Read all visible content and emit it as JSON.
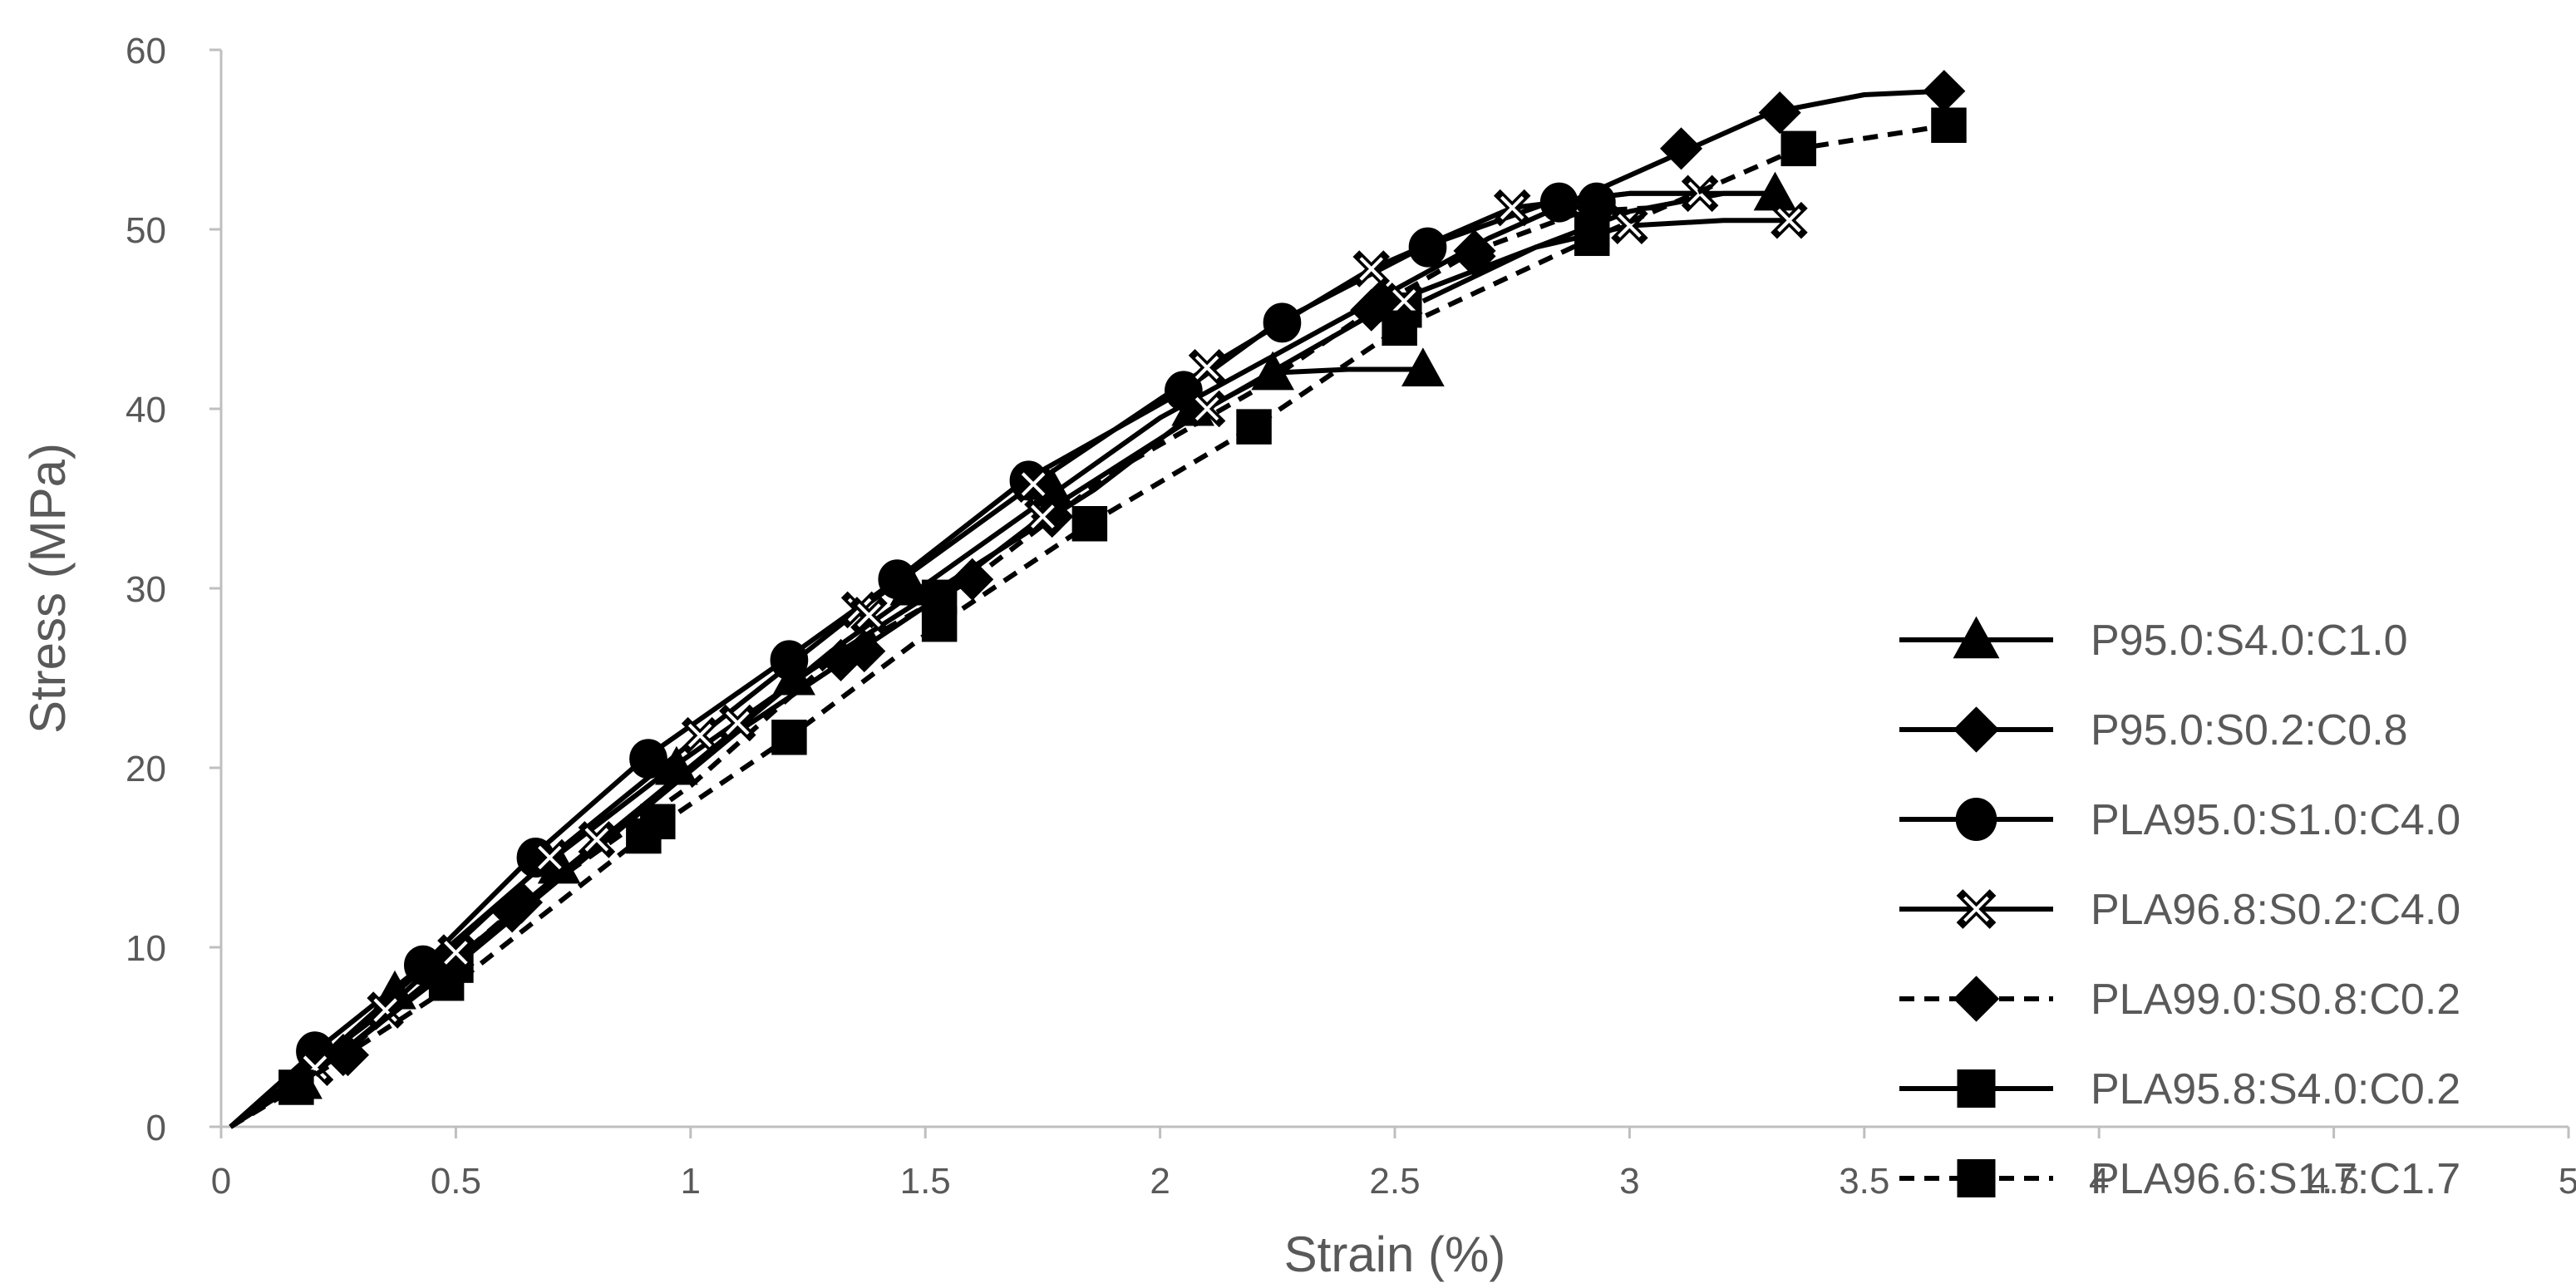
{
  "chart_data": {
    "type": "line",
    "title": "",
    "xlabel": "Strain (%)",
    "ylabel": "Stress (MPa)",
    "xlim": [
      0,
      5
    ],
    "ylim": [
      0,
      60
    ],
    "x_ticks": [
      "0",
      "0.5",
      "1",
      "1.5",
      "2",
      "2.5",
      "3",
      "3.5",
      "4",
      "4.5",
      "5"
    ],
    "y_ticks": [
      "0",
      "10",
      "20",
      "30",
      "40",
      "50",
      "60"
    ],
    "grid": false,
    "legend_position": "bottom-right",
    "series": [
      {
        "name": "P95.0:S4.0:C1.0",
        "marker": "triangle",
        "marker_fill": "#000000",
        "line_style": "solid",
        "x": [
          0.02,
          0.16,
          0.36,
          0.66,
          0.96,
          1.26,
          1.56,
          1.86,
          2.06,
          2.24,
          2.4,
          2.56
        ],
        "y": [
          0,
          2.5,
          7.2,
          14.0,
          20.0,
          25.5,
          30.5,
          35.5,
          39.5,
          42.0,
          42.2,
          42.2
        ],
        "marker_x": [
          0.17,
          0.37,
          0.72,
          0.97,
          1.22,
          1.47,
          1.77,
          2.07,
          2.24,
          2.56
        ],
        "marker_y": [
          2.5,
          7.5,
          14.5,
          20.0,
          25.0,
          30.0,
          35.5,
          40.0,
          42.0,
          42.2
        ],
        "tail_x": [
          2.56,
          2.8,
          3.0,
          3.2,
          3.31
        ],
        "tail_y": [
          46.0,
          49.0,
          51.0,
          52.0,
          52.0
        ]
      },
      {
        "name": "P95.0:S0.2:C0.8",
        "marker": "diamond",
        "marker_fill": "#000000",
        "line_style": "solid",
        "x": [
          0.02,
          0.25,
          0.6,
          0.95,
          1.3,
          1.65,
          2.0,
          2.35,
          2.7,
          3.0,
          3.3,
          3.5,
          3.67
        ],
        "y": [
          0,
          4.0,
          11.5,
          19.0,
          26.5,
          33.0,
          39.5,
          44.5,
          49.5,
          53.0,
          56.5,
          57.5,
          57.7
        ],
        "marker_x": [
          0.27,
          0.62,
          1.37,
          1.77,
          2.47,
          2.67,
          3.11,
          3.32,
          3.67
        ],
        "marker_y": [
          4.0,
          12.0,
          26.5,
          34.0,
          46.0,
          48.5,
          54.5,
          56.5,
          57.7
        ]
      },
      {
        "name": "PLA95.0:S1.0:C4.0",
        "marker": "circle",
        "marker_fill": "#000000",
        "line_style": "solid",
        "x": [
          0.02,
          0.2,
          0.43,
          0.66,
          0.9,
          1.2,
          1.44,
          1.71,
          2.05,
          2.25,
          2.56,
          2.83,
          3.0,
          3.3
        ],
        "y": [
          0,
          4.2,
          9.0,
          15.0,
          20.5,
          26.0,
          30.5,
          36.0,
          41.0,
          44.8,
          49.0,
          51.5,
          52.0,
          52.0
        ],
        "marker_x": [
          0.2,
          0.43,
          0.67,
          0.91,
          1.21,
          1.44,
          1.72,
          2.05,
          2.26,
          2.57,
          2.85,
          2.93
        ],
        "marker_y": [
          4.2,
          9.0,
          15.0,
          20.5,
          26.0,
          30.5,
          36.0,
          41.0,
          44.8,
          49.0,
          51.5,
          51.5
        ]
      },
      {
        "name": "PLA96.8:S0.2:C4.0",
        "marker": "x",
        "marker_fill": "#000000",
        "line_style": "solid",
        "x": [
          0.02,
          0.35,
          0.7,
          1.02,
          1.36,
          1.73,
          2.1,
          2.45,
          2.75,
          3.0,
          3.15
        ],
        "y": [
          0,
          6.5,
          15.0,
          21.8,
          28.8,
          35.8,
          42.3,
          47.8,
          51.2,
          52.0,
          52.0
        ],
        "marker_x": [
          0.35,
          0.7,
          1.02,
          1.36,
          1.73,
          2.1,
          2.45,
          2.75,
          3.15
        ],
        "marker_y": [
          6.5,
          15.0,
          21.8,
          28.8,
          35.8,
          42.3,
          47.8,
          51.2,
          52.0
        ]
      },
      {
        "name": "PLA99.0:S0.8:C0.2",
        "marker": "diamond",
        "marker_fill": "#000000",
        "line_style": "dashed",
        "x": [
          0.02,
          0.25,
          0.62,
          1.0,
          1.3,
          1.6,
          1.9,
          2.2,
          2.45,
          2.67,
          2.9,
          3.05
        ],
        "y": [
          0,
          3.8,
          12.0,
          19.0,
          26.0,
          30.5,
          36.5,
          41.0,
          45.5,
          48.8,
          51.0,
          51.2
        ],
        "marker_x": [
          0.26,
          0.64,
          1.32,
          1.6,
          2.45,
          2.67,
          2.93
        ],
        "marker_y": [
          4.0,
          12.5,
          26.0,
          30.5,
          45.5,
          48.8,
          51.2
        ]
      },
      {
        "name": "PLA95.8:S4.0:C0.2",
        "marker": "square",
        "marker_fill": "#000000",
        "line_style": "solid",
        "x": [
          0.02,
          0.2,
          0.5,
          0.8,
          1.1,
          1.5,
          1.8,
          2.1,
          2.5,
          2.8,
          3.0,
          3.2,
          3.34
        ],
        "y": [
          0,
          3.0,
          9.0,
          15.5,
          22.0,
          29.0,
          35.0,
          40.0,
          46.0,
          49.0,
          50.2,
          50.5,
          50.5
        ],
        "marker_x": [
          0.5,
          0.93,
          1.53,
          2.52,
          2.92
        ],
        "marker_y": [
          9.0,
          17.0,
          29.5,
          45.5,
          50.0
        ],
        "open_marker": "x",
        "open_marker_x": [
          0.2,
          0.5,
          0.8,
          1.1,
          1.38,
          1.75,
          2.1,
          2.52,
          3.0,
          3.34
        ],
        "open_marker_y": [
          3.3,
          9.7,
          16.0,
          22.5,
          28.5,
          34.0,
          40.0,
          46.0,
          50.2,
          50.5
        ]
      },
      {
        "name": "PLA96.6:S1.7:C1.7",
        "marker": "square",
        "marker_fill": "#000000",
        "line_style": "dashed",
        "x": [
          0.02,
          0.16,
          0.5,
          0.9,
          1.21,
          1.53,
          1.85,
          2.2,
          2.51,
          2.92,
          3.36,
          3.68
        ],
        "y": [
          0,
          2.2,
          8.0,
          16.2,
          21.7,
          28.0,
          33.6,
          39.0,
          44.5,
          49.5,
          54.5,
          55.8
        ],
        "marker_x": [
          0.16,
          0.48,
          0.9,
          1.21,
          1.53,
          1.85,
          2.2,
          2.51,
          2.92,
          3.36,
          3.68
        ],
        "marker_y": [
          2.2,
          8.0,
          16.2,
          21.7,
          28.0,
          33.6,
          39.0,
          44.5,
          49.5,
          54.5,
          55.8
        ]
      }
    ]
  }
}
